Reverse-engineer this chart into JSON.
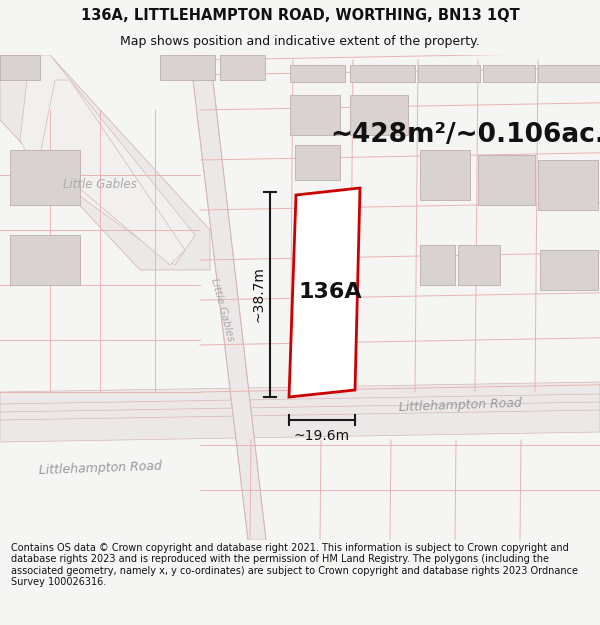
{
  "title_line1": "136A, LITTLEHAMPTON ROAD, WORTHING, BN13 1QT",
  "title_line2": "Map shows position and indicative extent of the property.",
  "area_text": "~428m²/~0.106ac.",
  "label_136A": "136A",
  "dim_width": "~19.6m",
  "dim_height": "~38.7m",
  "road_label_right": "Littlehampton Road",
  "road_label_left": "Littlehampton Road",
  "street_label_diag": "Little Gables",
  "street_label_horiz": "Little Gables",
  "copyright_text": "Contains OS data © Crown copyright and database right 2021. This information is subject to Crown copyright and database rights 2023 and is reproduced with the permission of HM Land Registry. The polygons (including the associated geometry, namely x, y co-ordinates) are subject to Crown copyright and database rights 2023 Ordnance Survey 100026316.",
  "bg_color": "#f5f5f3",
  "map_bg": "#f2f0ee",
  "road_fill": "#ede8e8",
  "road_edge": "#d4b8b8",
  "plot_line_color": "#e8b4b4",
  "building_fill": "#d8d2d0",
  "building_edge": "#c4b4b2",
  "red_plot_color": "#cc0000",
  "dim_line_color": "#1a1a1a",
  "title_fontsize": 10.5,
  "subtitle_fontsize": 9,
  "area_fontsize": 19,
  "label_fontsize": 16,
  "dim_fontsize": 10,
  "road_label_fontsize": 9,
  "copyright_fontsize": 7.0
}
